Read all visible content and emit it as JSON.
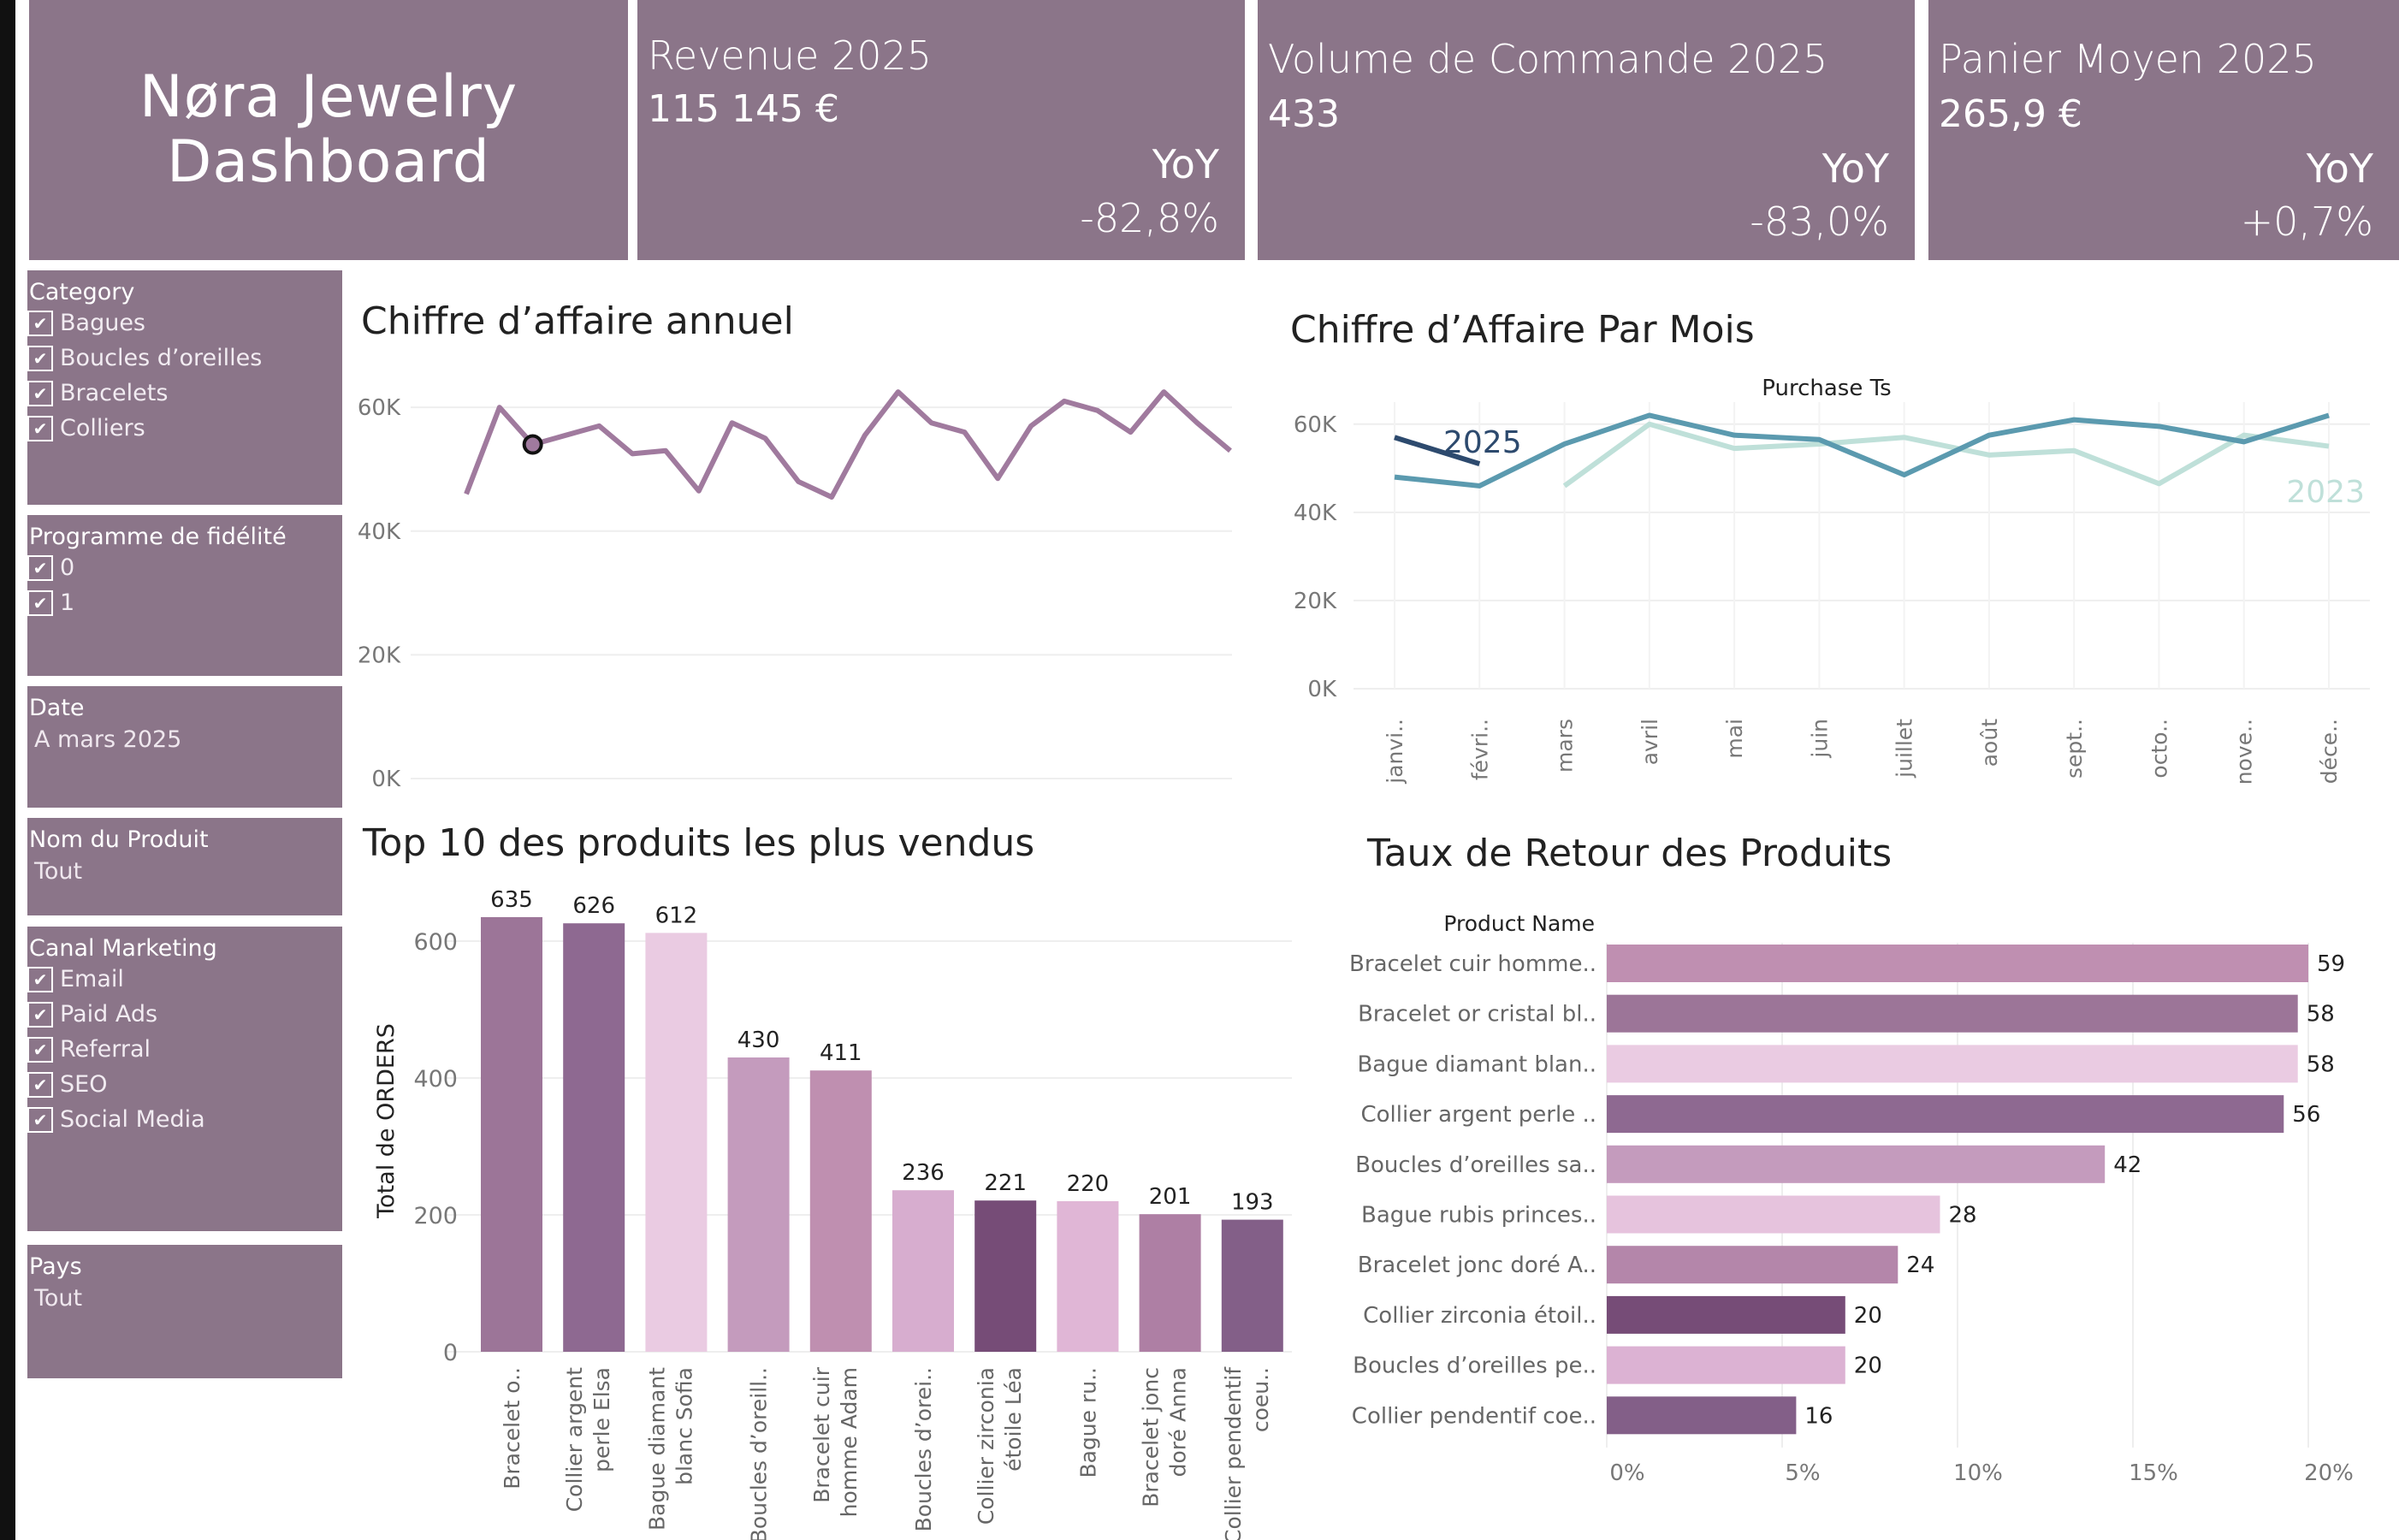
{
  "header": {
    "title_line1": "Nøra Jewelry",
    "title_line2": "Dashboard",
    "kpis": [
      {
        "label": "Revenue 2025",
        "value": "115 145 €",
        "yoy_label": "YoY",
        "yoy_value": "-82,8%"
      },
      {
        "label": "Volume de Commande 2025",
        "value": "433",
        "yoy_label": "YoY",
        "yoy_value": "-83,0%"
      },
      {
        "label": "Panier Moyen 2025",
        "value": "265,9 €",
        "yoy_label": "YoY",
        "yoy_value": "+0,7%"
      }
    ]
  },
  "filters": {
    "category": {
      "title": "Category",
      "items": [
        "Bagues",
        "Boucles d’oreilles",
        "Bracelets",
        "Colliers"
      ]
    },
    "fidelite": {
      "title": "Programme de fidélité",
      "items": [
        "0",
        "1"
      ]
    },
    "date": {
      "title": "Date",
      "value": "A mars 2025"
    },
    "produit": {
      "title": "Nom du Produit",
      "value": "Tout"
    },
    "canal": {
      "title": "Canal Marketing",
      "items": [
        "Email",
        "Paid Ads",
        "Referral",
        "SEO",
        "Social Media"
      ]
    },
    "pays": {
      "title": "Pays",
      "value": "Tout"
    }
  },
  "colors": {
    "card": "#8b7589",
    "annual_line": "#a07a9e",
    "series_2025": "#2d4a6e",
    "series_2024": "#5b9aaf",
    "series_2023": "#bfe0d9"
  },
  "chart_data": [
    {
      "type": "line",
      "title": "Chiffre d’affaire annuel",
      "y_ticks": [
        "0K",
        "20K",
        "40K",
        "60K"
      ],
      "ylim": [
        0,
        65000
      ],
      "values": [
        46000,
        60000,
        54000,
        55500,
        57000,
        52500,
        53000,
        46500,
        57500,
        55000,
        48000,
        45500,
        55500,
        62500,
        57500,
        56000,
        48500,
        57000,
        61000,
        59500,
        56000,
        62500,
        57500,
        53000
      ],
      "highlight_index": 2
    },
    {
      "type": "line",
      "title": "Chiffre d’Affaire Par Mois",
      "header": "Purchase Ts",
      "categories": [
        "janvi..",
        "févri..",
        "mars",
        "avril",
        "mai",
        "juin",
        "juillet",
        "août",
        "sept..",
        "octo..",
        "nove..",
        "déce.."
      ],
      "y_ticks": [
        "0K",
        "20K",
        "40K",
        "60K"
      ],
      "ylim": [
        0,
        65000
      ],
      "series": [
        {
          "name": "2025",
          "values": [
            57000,
            51000,
            null,
            null,
            null,
            null,
            null,
            null,
            null,
            null,
            null,
            null
          ]
        },
        {
          "name": "",
          "values": [
            48000,
            46000,
            55500,
            62000,
            57500,
            56500,
            48500,
            57500,
            61000,
            59500,
            56000,
            62000
          ]
        },
        {
          "name": "2023",
          "values": [
            null,
            null,
            46000,
            60000,
            54500,
            55500,
            57000,
            53000,
            54000,
            46500,
            57500,
            55000
          ]
        }
      ]
    },
    {
      "type": "bar",
      "title": "Top 10 des produits les plus vendus",
      "ylabel": "Total de ORDERS",
      "y_ticks": [
        "0",
        "200",
        "400",
        "600"
      ],
      "ylim": [
        0,
        650
      ],
      "categories": [
        "Bracelet o..",
        "Collier argent perle Elsa",
        "Bague diamant blanc Sofia",
        "Boucles d’oreill..",
        "Bracelet cuir homme Adam",
        "Boucles d’orei..",
        "Collier zirconia étoile Léa",
        "Bague ru..",
        "Bracelet jonc doré Anna",
        "Collier pendentif coeu.."
      ],
      "values": [
        635,
        626,
        612,
        430,
        411,
        236,
        221,
        220,
        201,
        193
      ],
      "bar_colors": [
        "#9c7598",
        "#8e6991",
        "#eacbe2",
        "#c49bbd",
        "#bf8fb0",
        "#d7adcf",
        "#764c77",
        "#e0b6d6",
        "#ae7fa4",
        "#835f88"
      ]
    },
    {
      "type": "bar",
      "title": "Taux de Retour des Produits",
      "orientation": "horizontal",
      "header": "Product Name",
      "x_ticks": [
        "0%",
        "5%",
        "10%",
        "15%",
        "20%"
      ],
      "xlim": [
        0,
        21.5
      ],
      "categories": [
        "Bracelet cuir homme..",
        "Bracelet or cristal bl..",
        "Bague diamant blan..",
        "Collier argent perle ..",
        "Boucles d’oreilles sa..",
        "Bague rubis princes..",
        "Bracelet jonc doré A..",
        "Collier zirconia étoil..",
        "Boucles d’oreilles pe..",
        "Collier pendentif coe.."
      ],
      "values": [
        20.0,
        19.7,
        19.7,
        19.3,
        14.2,
        9.5,
        8.3,
        6.8,
        6.8,
        5.4
      ],
      "labels": [
        "59",
        "58",
        "58",
        "56",
        "42",
        "28",
        "24",
        "20",
        "20",
        "16"
      ],
      "bar_colors": [
        "#bf8fb1",
        "#9c7598",
        "#eacbe2",
        "#8e6991",
        "#c49bbd",
        "#e6c3dd",
        "#b486aa",
        "#764c77",
        "#dcb2d3",
        "#835f88"
      ]
    }
  ]
}
